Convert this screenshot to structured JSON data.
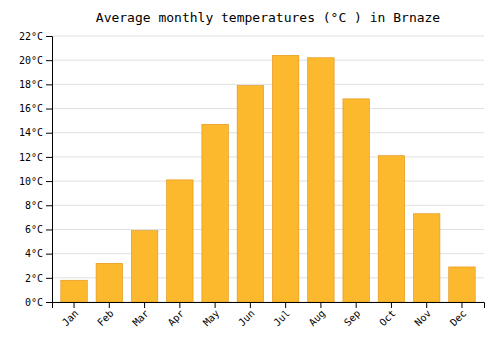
{
  "chart_data": {
    "type": "bar",
    "title": "Average monthly temperatures (°C ) in Brnaze",
    "categories": [
      "Jan",
      "Feb",
      "Mar",
      "Apr",
      "May",
      "Jun",
      "Jul",
      "Aug",
      "Sep",
      "Oct",
      "Nov",
      "Dec"
    ],
    "values": [
      1.8,
      3.2,
      5.9,
      10.1,
      14.7,
      17.9,
      20.4,
      20.2,
      16.8,
      12.1,
      7.3,
      2.9
    ],
    "color": "#FDB92E",
    "ylim": [
      0,
      22
    ],
    "yticks": [
      {
        "value": 0,
        "label": "0°C"
      },
      {
        "value": 2,
        "label": "2°C"
      },
      {
        "value": 4,
        "label": "4°C"
      },
      {
        "value": 6,
        "label": "6°C"
      },
      {
        "value": 8,
        "label": "8°C"
      },
      {
        "value": 10,
        "label": "10°C"
      },
      {
        "value": 12,
        "label": "12°C"
      },
      {
        "value": 14,
        "label": "14°C"
      },
      {
        "value": 16,
        "label": "16°C"
      },
      {
        "value": 18,
        "label": "18°C"
      },
      {
        "value": 20,
        "label": "20°C"
      },
      {
        "value": 22,
        "label": "22°C"
      }
    ],
    "grid": true
  }
}
